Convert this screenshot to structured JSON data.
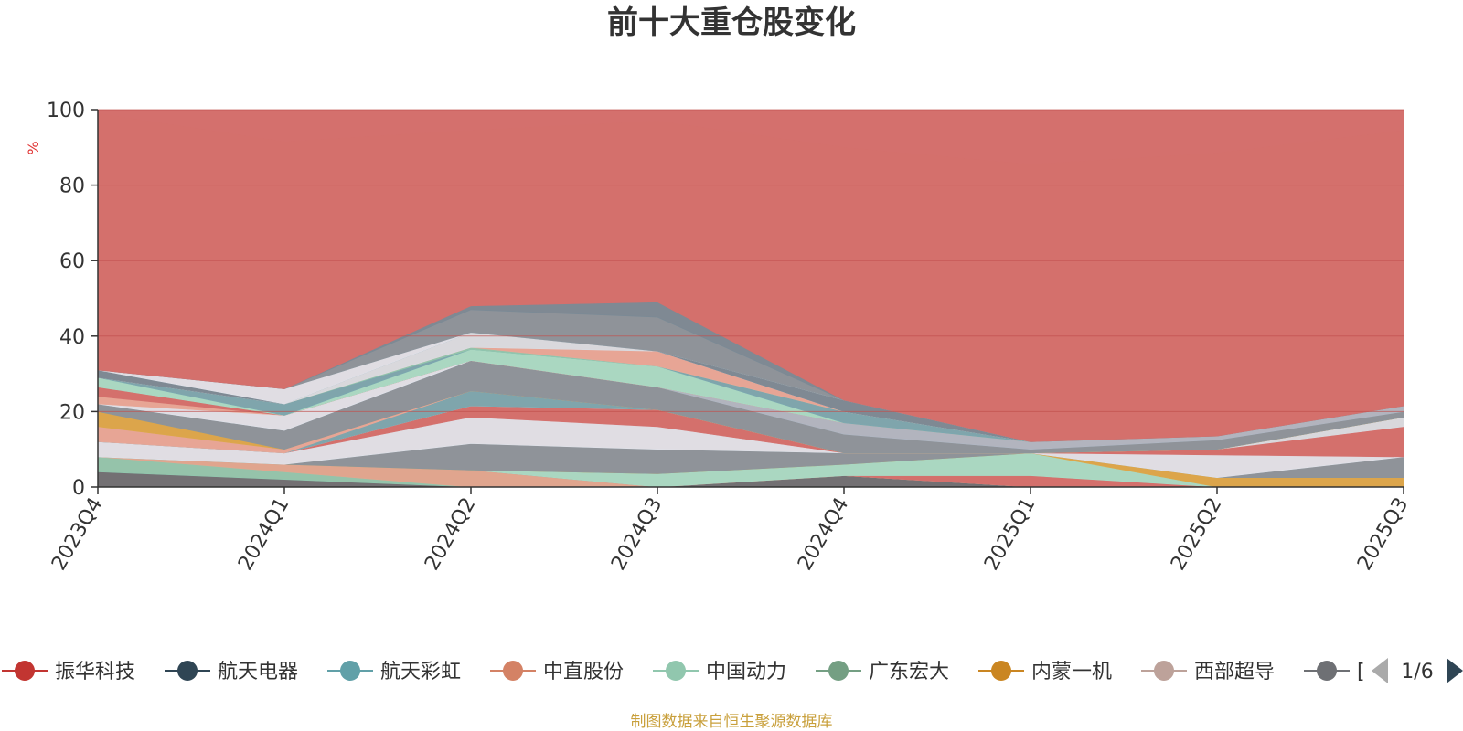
{
  "title": "前十大重仓股变化",
  "source_note": "制图数据来自恒生聚源数据库",
  "colors": {
    "background_area": "#d4706d",
    "gridline": "#c0504d",
    "axis": "#333333",
    "source_note": "#c9a03c",
    "unit_label": "#e03030"
  },
  "chart_data": {
    "type": "area",
    "stacked": true,
    "ylabel": "%",
    "ylim": [
      0,
      100
    ],
    "yticks": [
      0,
      20,
      40,
      60,
      80,
      100
    ],
    "grid": true,
    "legend_position": "bottom",
    "x": [
      "2023Q4",
      "2024Q1",
      "2024Q2",
      "2024Q3",
      "2024Q4",
      "2025Q1",
      "2025Q2",
      "2025Q3"
    ],
    "series": [
      {
        "name": "",
        "color": "#6e7074",
        "values": [
          4,
          2,
          0,
          0,
          3,
          0,
          0,
          0
        ]
      },
      {
        "name": "",
        "color": "#91c7ae",
        "values": [
          4,
          2,
          0,
          0,
          0,
          0,
          0,
          0
        ]
      },
      {
        "name": "",
        "color": "#e0a890",
        "values": [
          0,
          2,
          4.5,
          0,
          0,
          0,
          0,
          0
        ]
      },
      {
        "name": "振华科技",
        "color": "#d4706d",
        "values": [
          0,
          0,
          0,
          0,
          0,
          3,
          0,
          0
        ]
      },
      {
        "name": "中国动力",
        "color": "#a8dcc6",
        "values": [
          0,
          0,
          0,
          3.5,
          3,
          6,
          0,
          0
        ]
      },
      {
        "name": "内蒙一机",
        "color": "#dca84a",
        "values": [
          0,
          0,
          0,
          0,
          0,
          0,
          2.5,
          2.5
        ]
      },
      {
        "name": "",
        "color": "#8b959c",
        "values": [
          0,
          0,
          7,
          6.5,
          3,
          0,
          0,
          5.5
        ]
      },
      {
        "name": "",
        "color": "#e0e3ea",
        "values": [
          4,
          3,
          7,
          6,
          0,
          0,
          6,
          0
        ]
      },
      {
        "name": "",
        "color": "#d4706d",
        "values": [
          0,
          0,
          3,
          4.5,
          0,
          0,
          1.5,
          8
        ]
      },
      {
        "name": "",
        "color": "#d9dde3",
        "values": [
          0,
          0,
          0,
          0,
          0,
          0,
          0,
          2.5
        ]
      },
      {
        "name": "",
        "color": "#7aa8b0",
        "values": [
          0,
          0,
          4,
          0,
          0,
          0,
          0,
          0
        ]
      },
      {
        "name": "",
        "color": "#e8a898",
        "values": [
          4,
          1,
          0,
          0,
          0,
          0,
          0,
          0
        ]
      },
      {
        "name": "",
        "color": "#dca84a",
        "values": [
          4,
          0,
          0,
          0,
          0,
          0,
          0,
          0
        ]
      },
      {
        "name": "",
        "color": "#8b959c",
        "values": [
          2,
          5,
          8,
          6,
          5,
          1,
          2.5,
          1.5
        ]
      },
      {
        "name": "",
        "color": "#b0b7c3",
        "values": [
          0,
          0,
          0,
          0,
          3,
          2,
          1,
          1.5
        ]
      },
      {
        "name": "",
        "color": "#e0e3ea",
        "values": [
          0,
          4,
          0,
          0,
          0,
          0,
          0,
          0
        ]
      },
      {
        "name": "",
        "color": "#e8a898",
        "values": [
          2,
          0,
          0,
          0,
          0,
          0,
          0,
          0
        ]
      },
      {
        "name": "",
        "color": "#d4706d",
        "values": [
          2.5,
          0,
          0,
          0,
          0,
          0,
          0,
          0
        ]
      },
      {
        "name": "",
        "color": "#a8dcc6",
        "values": [
          2.5,
          0,
          3,
          5.5,
          0,
          0,
          0,
          0
        ]
      },
      {
        "name": "",
        "color": "#7aa8b0",
        "values": [
          0,
          3,
          0,
          0,
          3,
          0,
          0,
          0
        ]
      },
      {
        "name": "",
        "color": "#91c7ae",
        "values": [
          0,
          0,
          0.5,
          0,
          0,
          0,
          0,
          0
        ]
      },
      {
        "name": "",
        "color": "#e8a898",
        "values": [
          0,
          0,
          0,
          4,
          0,
          0,
          0,
          0
        ]
      },
      {
        "name": "",
        "color": "#d9dde3",
        "values": [
          0,
          0,
          4,
          0,
          0,
          0,
          0,
          0
        ]
      },
      {
        "name": "",
        "color": "#7a8a96",
        "values": [
          2,
          0,
          0,
          0,
          3,
          0,
          0,
          0
        ]
      },
      {
        "name": "",
        "color": "#e0e3ea",
        "values": [
          0,
          4,
          0,
          0,
          0,
          0,
          0,
          0
        ]
      },
      {
        "name": "",
        "color": "#8b959c",
        "values": [
          0,
          0,
          6,
          9,
          0,
          0,
          0,
          0
        ]
      },
      {
        "name": "",
        "color": "#7a8a96",
        "values": [
          0,
          0,
          1,
          4,
          0,
          0,
          0,
          0
        ]
      },
      {
        "name": "",
        "color": "#d4706d",
        "values": [
          68,
          65.5,
          46.5,
          48,
          67,
          73.5,
          75,
          73
        ]
      }
    ]
  },
  "legend": {
    "items": [
      {
        "label": "振华科技",
        "color": "#c23531"
      },
      {
        "label": "航天电器",
        "color": "#2f4554"
      },
      {
        "label": "航天彩虹",
        "color": "#61a0a8"
      },
      {
        "label": "中直股份",
        "color": "#d48265"
      },
      {
        "label": "中国动力",
        "color": "#91c7ae"
      },
      {
        "label": "广东宏大",
        "color": "#749f83"
      },
      {
        "label": "内蒙一机",
        "color": "#ca8622"
      },
      {
        "label": "西部超导",
        "color": "#bda29a"
      },
      {
        "label": "",
        "color": "#6e7074"
      }
    ],
    "partial_text": "[",
    "page": "1/6",
    "prev_icon": "triangle-left-icon",
    "next_icon": "triangle-right-icon"
  }
}
